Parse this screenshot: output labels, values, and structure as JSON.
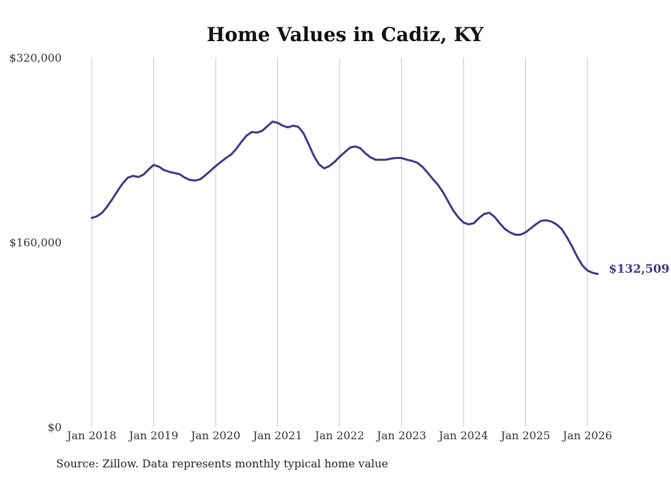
{
  "chart_data": {
    "type": "line",
    "title": "Home Values in Cadiz, KY",
    "xlabel": "",
    "ylabel": "",
    "ylim": [
      0,
      320000
    ],
    "yticks": [
      {
        "value": 0,
        "label": "$0"
      },
      {
        "value": 160000,
        "label": "$160,000"
      },
      {
        "value": 320000,
        "label": "$320,000"
      }
    ],
    "xlim": [
      "2018-01",
      "2026-03"
    ],
    "xticks": [
      {
        "date": "2018-01",
        "label": "Jan 2018"
      },
      {
        "date": "2019-01",
        "label": "Jan 2019"
      },
      {
        "date": "2020-01",
        "label": "Jan 2020"
      },
      {
        "date": "2021-01",
        "label": "Jan 2021"
      },
      {
        "date": "2022-01",
        "label": "Jan 2022"
      },
      {
        "date": "2023-01",
        "label": "Jan 2023"
      },
      {
        "date": "2024-01",
        "label": "Jan 2024"
      },
      {
        "date": "2025-01",
        "label": "Jan 2025"
      },
      {
        "date": "2026-01",
        "label": "Jan 2026"
      }
    ],
    "grid": {
      "vertical": true,
      "horizontal": false
    },
    "line_color": "#3b3888",
    "end_label": "$132,509",
    "series": [
      {
        "x": [
          "2018-01",
          "2018-02",
          "2018-03",
          "2018-04",
          "2018-05",
          "2018-06",
          "2018-07",
          "2018-08",
          "2018-09",
          "2018-10",
          "2018-11",
          "2018-12",
          "2019-01",
          "2019-02",
          "2019-03",
          "2019-04",
          "2019-05",
          "2019-06",
          "2019-07",
          "2019-08",
          "2019-09",
          "2019-10",
          "2019-11",
          "2019-12",
          "2020-01",
          "2020-02",
          "2020-03",
          "2020-04",
          "2020-05",
          "2020-06",
          "2020-07",
          "2020-08",
          "2020-09",
          "2020-10",
          "2020-11",
          "2020-12",
          "2021-01",
          "2021-02",
          "2021-03",
          "2021-04",
          "2021-05",
          "2021-06",
          "2021-07",
          "2021-08",
          "2021-09",
          "2021-10",
          "2021-11",
          "2021-12",
          "2022-01",
          "2022-02",
          "2022-03",
          "2022-04",
          "2022-05",
          "2022-06",
          "2022-07",
          "2022-08",
          "2022-09",
          "2022-10",
          "2022-11",
          "2022-12",
          "2023-01",
          "2023-02",
          "2023-03",
          "2023-04",
          "2023-05",
          "2023-06",
          "2023-07",
          "2023-08",
          "2023-09",
          "2023-10",
          "2023-11",
          "2023-12",
          "2024-01",
          "2024-02",
          "2024-03",
          "2024-04",
          "2024-05",
          "2024-06",
          "2024-07",
          "2024-08",
          "2024-09",
          "2024-10",
          "2024-11",
          "2024-12",
          "2025-01",
          "2025-02",
          "2025-03",
          "2025-04",
          "2025-05",
          "2025-06",
          "2025-07",
          "2025-08",
          "2025-09",
          "2025-10",
          "2025-11",
          "2025-12",
          "2026-01",
          "2026-02",
          "2026-03"
        ],
        "values": [
          181000,
          182500,
          185500,
          191000,
          197500,
          204500,
          211000,
          216000,
          217500,
          216500,
          218500,
          223000,
          227000,
          225500,
          222500,
          221000,
          220000,
          219000,
          216000,
          214000,
          213500,
          214500,
          218000,
          222000,
          226000,
          229500,
          233000,
          236000,
          241000,
          247000,
          252500,
          255500,
          255000,
          256500,
          260500,
          264500,
          263500,
          261000,
          259500,
          261000,
          260000,
          254500,
          245000,
          235000,
          227500,
          224000,
          226000,
          229500,
          234000,
          238000,
          242000,
          243000,
          241500,
          237000,
          233500,
          231500,
          231500,
          231500,
          232500,
          233000,
          233000,
          231500,
          230500,
          229000,
          225500,
          220500,
          215000,
          210000,
          203500,
          195500,
          187500,
          181500,
          177000,
          175500,
          176500,
          181000,
          184500,
          185500,
          182000,
          176500,
          171500,
          168500,
          166500,
          166500,
          168500,
          172000,
          175500,
          178500,
          179000,
          178000,
          175500,
          171500,
          164500,
          156500,
          147500,
          140000,
          135500,
          133500,
          132509
        ]
      }
    ]
  },
  "source": "Source: Zillow. Data represents monthly typical home value"
}
